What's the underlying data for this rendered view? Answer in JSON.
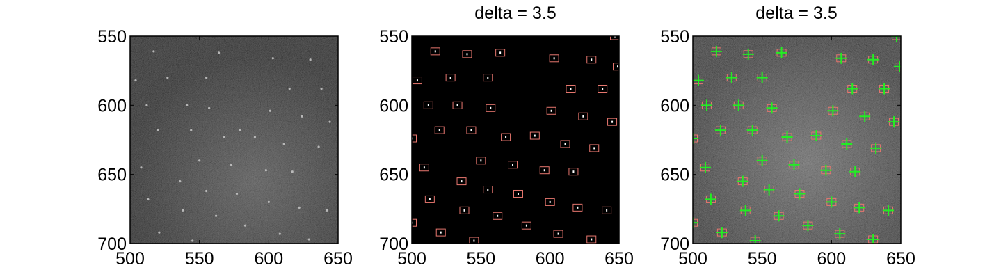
{
  "figure": {
    "background": "#ffffff"
  },
  "chart_data": [
    {
      "type": "heatmap",
      "title": "",
      "xlim": [
        500,
        650
      ],
      "ylim": [
        700,
        550
      ],
      "y_axis_inverted": true,
      "x_ticks": [
        "500",
        "550",
        "600",
        "650"
      ],
      "y_ticks": [
        "550",
        "600",
        "650",
        "700"
      ],
      "image": "raw grayscale microscopy frame with faint bright spots",
      "spots": [
        [
          517,
          561
        ],
        [
          564,
          562
        ],
        [
          527,
          580
        ],
        [
          603,
          566
        ],
        [
          630,
          567
        ],
        [
          512,
          600
        ],
        [
          520,
          618
        ],
        [
          541,
          600
        ],
        [
          557,
          602
        ],
        [
          544,
          618
        ],
        [
          579,
          618
        ],
        [
          601,
          604
        ],
        [
          624,
          608
        ],
        [
          615,
          588
        ],
        [
          638,
          588
        ],
        [
          504,
          582
        ],
        [
          508,
          645
        ],
        [
          536,
          655
        ],
        [
          550,
          640
        ],
        [
          573,
          643
        ],
        [
          598,
          647
        ],
        [
          617,
          648
        ],
        [
          513,
          668
        ],
        [
          555,
          662
        ],
        [
          577,
          664
        ],
        [
          600,
          670
        ],
        [
          622,
          674
        ],
        [
          642,
          676
        ],
        [
          538,
          676
        ],
        [
          562,
          680
        ],
        [
          583,
          687
        ],
        [
          608,
          693
        ],
        [
          545,
          698
        ],
        [
          629,
          697
        ],
        [
          568,
          623
        ],
        [
          611,
          628
        ],
        [
          590,
          623
        ],
        [
          636,
          630
        ],
        [
          521,
          692
        ],
        [
          555,
          580
        ],
        [
          644,
          612
        ]
      ]
    },
    {
      "type": "heatmap",
      "title": "delta = 3.5",
      "xlim": [
        500,
        650
      ],
      "ylim": [
        700,
        550
      ],
      "y_axis_inverted": true,
      "x_ticks": [
        "500",
        "550",
        "600",
        "650"
      ],
      "y_ticks": [
        "550",
        "600",
        "650",
        "700"
      ],
      "image": "thresholded binary mask, black background with white spot pixels",
      "box_color": "#e8776f",
      "spots": [
        [
          517,
          561
        ],
        [
          540,
          563
        ],
        [
          564,
          562
        ],
        [
          603,
          566
        ],
        [
          630,
          567
        ],
        [
          647,
          550
        ],
        [
          649,
          572
        ],
        [
          504,
          582
        ],
        [
          528,
          580
        ],
        [
          555,
          580
        ],
        [
          615,
          588
        ],
        [
          638,
          588
        ],
        [
          512,
          600
        ],
        [
          533,
          600
        ],
        [
          557,
          602
        ],
        [
          601,
          604
        ],
        [
          624,
          608
        ],
        [
          645,
          612
        ],
        [
          520,
          618
        ],
        [
          543,
          618
        ],
        [
          568,
          623
        ],
        [
          589,
          622
        ],
        [
          611,
          628
        ],
        [
          632,
          631
        ],
        [
          500,
          624
        ],
        [
          509,
          645
        ],
        [
          550,
          640
        ],
        [
          573,
          643
        ],
        [
          596,
          647
        ],
        [
          617,
          648
        ],
        [
          536,
          655
        ],
        [
          555,
          661
        ],
        [
          577,
          664
        ],
        [
          600,
          670
        ],
        [
          513,
          668
        ],
        [
          538,
          676
        ],
        [
          562,
          680
        ],
        [
          620,
          674
        ],
        [
          641,
          676
        ],
        [
          500,
          685
        ],
        [
          521,
          692
        ],
        [
          583,
          687
        ],
        [
          606,
          693
        ],
        [
          545,
          698
        ],
        [
          630,
          697
        ]
      ]
    },
    {
      "type": "heatmap",
      "title": "delta = 3.5",
      "xlim": [
        500,
        650
      ],
      "ylim": [
        700,
        550
      ],
      "y_axis_inverted": true,
      "x_ticks": [
        "500",
        "550",
        "600",
        "650"
      ],
      "y_ticks": [
        "550",
        "600",
        "650",
        "700"
      ],
      "image": "raw grayscale frame overlaid with red detection boxes and green centroid crosses",
      "box_color": "#e8776f",
      "marker_color": "#22ee22",
      "spots": [
        [
          517,
          561
        ],
        [
          540,
          563
        ],
        [
          564,
          562
        ],
        [
          607,
          566
        ],
        [
          630,
          567
        ],
        [
          647,
          550
        ],
        [
          649,
          572
        ],
        [
          504,
          582
        ],
        [
          528,
          580
        ],
        [
          550,
          580
        ],
        [
          615,
          588
        ],
        [
          638,
          588
        ],
        [
          510,
          600
        ],
        [
          533,
          600
        ],
        [
          557,
          602
        ],
        [
          601,
          604
        ],
        [
          624,
          608
        ],
        [
          645,
          612
        ],
        [
          520,
          618
        ],
        [
          543,
          618
        ],
        [
          568,
          623
        ],
        [
          589,
          622
        ],
        [
          611,
          628
        ],
        [
          632,
          631
        ],
        [
          500,
          624
        ],
        [
          509,
          645
        ],
        [
          550,
          640
        ],
        [
          573,
          643
        ],
        [
          596,
          647
        ],
        [
          617,
          648
        ],
        [
          536,
          655
        ],
        [
          555,
          661
        ],
        [
          577,
          664
        ],
        [
          600,
          670
        ],
        [
          513,
          668
        ],
        [
          538,
          676
        ],
        [
          562,
          680
        ],
        [
          620,
          674
        ],
        [
          641,
          676
        ],
        [
          500,
          685
        ],
        [
          521,
          692
        ],
        [
          583,
          687
        ],
        [
          606,
          693
        ],
        [
          545,
          698
        ],
        [
          630,
          697
        ]
      ]
    }
  ]
}
